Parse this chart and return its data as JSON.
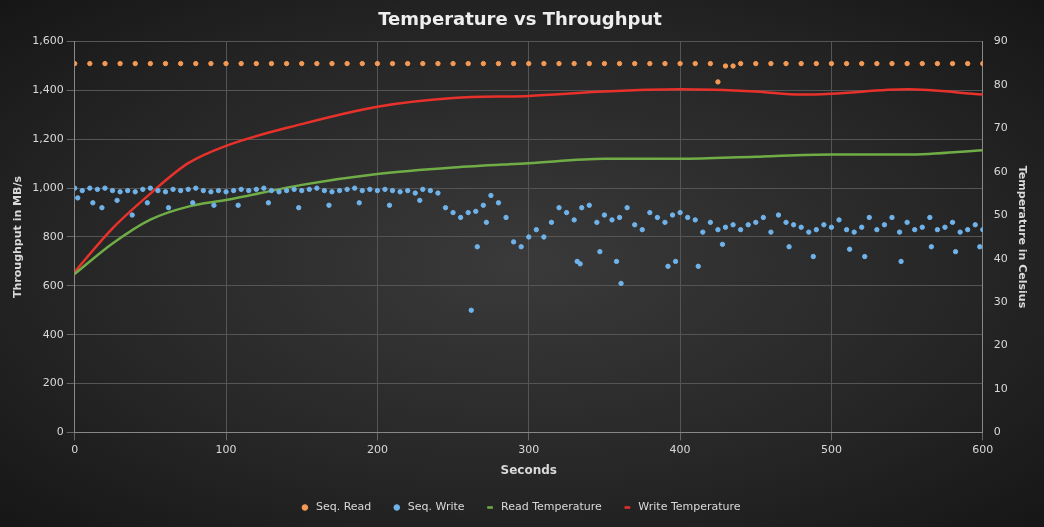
{
  "chart_data": {
    "type": "scatter",
    "title": "Temperature vs Throughput",
    "xlabel": "Seconds",
    "ylabel": "Throughput in MB/s",
    "y2label": "Temperature in Celsius",
    "xlim": [
      0,
      600
    ],
    "xticks": [
      0,
      100,
      200,
      300,
      400,
      500,
      600
    ],
    "ylim": [
      0,
      1600
    ],
    "yticks": [
      0,
      200,
      400,
      600,
      800,
      {
        "value": 1000,
        "label": "1,000"
      },
      {
        "value": 1200,
        "label": "1,200"
      },
      {
        "value": 1400,
        "label": "1,400"
      },
      {
        "value": 1600,
        "label": "1,600"
      }
    ],
    "y2lim": [
      0,
      90
    ],
    "y2ticks": [
      0,
      10,
      20,
      30,
      40,
      50,
      60,
      70,
      80,
      90
    ],
    "grid": true,
    "legend": "bottom",
    "series": [
      {
        "name": "Seq. Read",
        "marker": "circle",
        "color": "#f59a55",
        "x": [
          0,
          10,
          20,
          30,
          40,
          50,
          60,
          70,
          80,
          90,
          100,
          110,
          120,
          130,
          140,
          150,
          160,
          170,
          180,
          190,
          200,
          210,
          220,
          230,
          240,
          250,
          260,
          270,
          280,
          290,
          300,
          310,
          320,
          330,
          340,
          350,
          360,
          370,
          380,
          390,
          400,
          410,
          420,
          425,
          430,
          435,
          440,
          450,
          460,
          470,
          480,
          490,
          500,
          510,
          520,
          530,
          540,
          550,
          560,
          570,
          580,
          590,
          600
        ],
        "values": [
          1510,
          1510,
          1510,
          1510,
          1510,
          1510,
          1510,
          1510,
          1510,
          1510,
          1510,
          1510,
          1510,
          1510,
          1510,
          1510,
          1510,
          1510,
          1510,
          1510,
          1510,
          1510,
          1510,
          1510,
          1510,
          1510,
          1510,
          1510,
          1510,
          1510,
          1510,
          1510,
          1510,
          1510,
          1510,
          1510,
          1510,
          1510,
          1510,
          1510,
          1510,
          1510,
          1510,
          1435,
          1500,
          1500,
          1510,
          1510,
          1510,
          1510,
          1510,
          1510,
          1510,
          1510,
          1510,
          1510,
          1510,
          1510,
          1510,
          1510,
          1510,
          1510,
          1510
        ]
      },
      {
        "name": "Seq. Write",
        "marker": "circle",
        "color": "#6fb3ea",
        "x": [
          0,
          5,
          10,
          15,
          20,
          25,
          30,
          35,
          40,
          45,
          50,
          55,
          60,
          65,
          70,
          75,
          80,
          85,
          90,
          95,
          100,
          105,
          110,
          115,
          120,
          125,
          130,
          135,
          140,
          145,
          150,
          155,
          160,
          165,
          170,
          175,
          180,
          185,
          190,
          195,
          200,
          205,
          210,
          215,
          220,
          225,
          230,
          235,
          240,
          245,
          250,
          255,
          260,
          265,
          270,
          275,
          280,
          285,
          290,
          295,
          300,
          305,
          310,
          315,
          320,
          325,
          330,
          335,
          340,
          345,
          350,
          355,
          360,
          365,
          370,
          375,
          380,
          385,
          390,
          395,
          400,
          405,
          410,
          415,
          420,
          425,
          430,
          435,
          440,
          445,
          450,
          455,
          460,
          465,
          470,
          475,
          480,
          485,
          490,
          495,
          500,
          505,
          510,
          515,
          520,
          525,
          530,
          535,
          540,
          545,
          550,
          555,
          560,
          565,
          570,
          575,
          580,
          585,
          590,
          595,
          600,
          2,
          12,
          18,
          28,
          38,
          48,
          62,
          78,
          92,
          108,
          128,
          148,
          168,
          188,
          208,
          228,
          262,
          266,
          272,
          332,
          334,
          347,
          358,
          361,
          392,
          397,
          412,
          428,
          472,
          488,
          512,
          522,
          546,
          566,
          582,
          598
        ],
        "values": [
          1000,
          990,
          1000,
          995,
          1000,
          990,
          985,
          990,
          985,
          995,
          1000,
          990,
          985,
          995,
          990,
          995,
          1000,
          990,
          985,
          990,
          985,
          990,
          995,
          990,
          995,
          1000,
          990,
          985,
          990,
          995,
          990,
          995,
          1000,
          990,
          985,
          990,
          995,
          1000,
          990,
          995,
          990,
          995,
          990,
          985,
          990,
          980,
          995,
          990,
          980,
          920,
          900,
          880,
          900,
          905,
          930,
          970,
          940,
          880,
          780,
          760,
          800,
          830,
          800,
          860,
          920,
          900,
          870,
          920,
          930,
          860,
          890,
          870,
          880,
          920,
          850,
          830,
          900,
          880,
          860,
          890,
          900,
          880,
          870,
          820,
          860,
          830,
          840,
          850,
          830,
          850,
          860,
          880,
          820,
          890,
          860,
          850,
          840,
          820,
          830,
          850,
          840,
          870,
          830,
          820,
          840,
          880,
          830,
          850,
          880,
          820,
          860,
          830,
          840,
          880,
          830,
          840,
          860,
          820,
          830,
          850,
          830,
          960,
          940,
          920,
          950,
          890,
          940,
          920,
          940,
          930,
          930,
          940,
          920,
          930,
          940,
          930,
          950,
          500,
          760,
          860,
          700,
          690,
          740,
          700,
          610,
          680,
          700,
          680,
          770,
          760,
          720,
          750,
          720,
          700,
          760,
          740,
          760
        ]
      },
      {
        "name": "Read Temperature",
        "type": "line",
        "marker": "none",
        "axis": "y2",
        "color": "#70ad47",
        "x": [
          0,
          25,
          50,
          75,
          100,
          150,
          200,
          250,
          300,
          350,
          400,
          450,
          500,
          550,
          600
        ],
        "values": [
          36.5,
          43.5,
          49,
          52,
          53.5,
          57,
          59.5,
          61,
          62,
          63,
          63,
          63.5,
          64,
          64,
          65
        ]
      },
      {
        "name": "Write Temperature",
        "type": "line",
        "marker": "none",
        "axis": "y2",
        "color": "#e8312a",
        "x": [
          0,
          25,
          50,
          75,
          100,
          150,
          200,
          250,
          300,
          350,
          400,
          450,
          480,
          500,
          550,
          600
        ],
        "values": [
          37,
          47,
          55,
          62,
          66,
          71,
          75,
          77,
          77.5,
          78.5,
          79,
          78.5,
          77.8,
          78,
          79,
          77.8
        ]
      }
    ]
  }
}
